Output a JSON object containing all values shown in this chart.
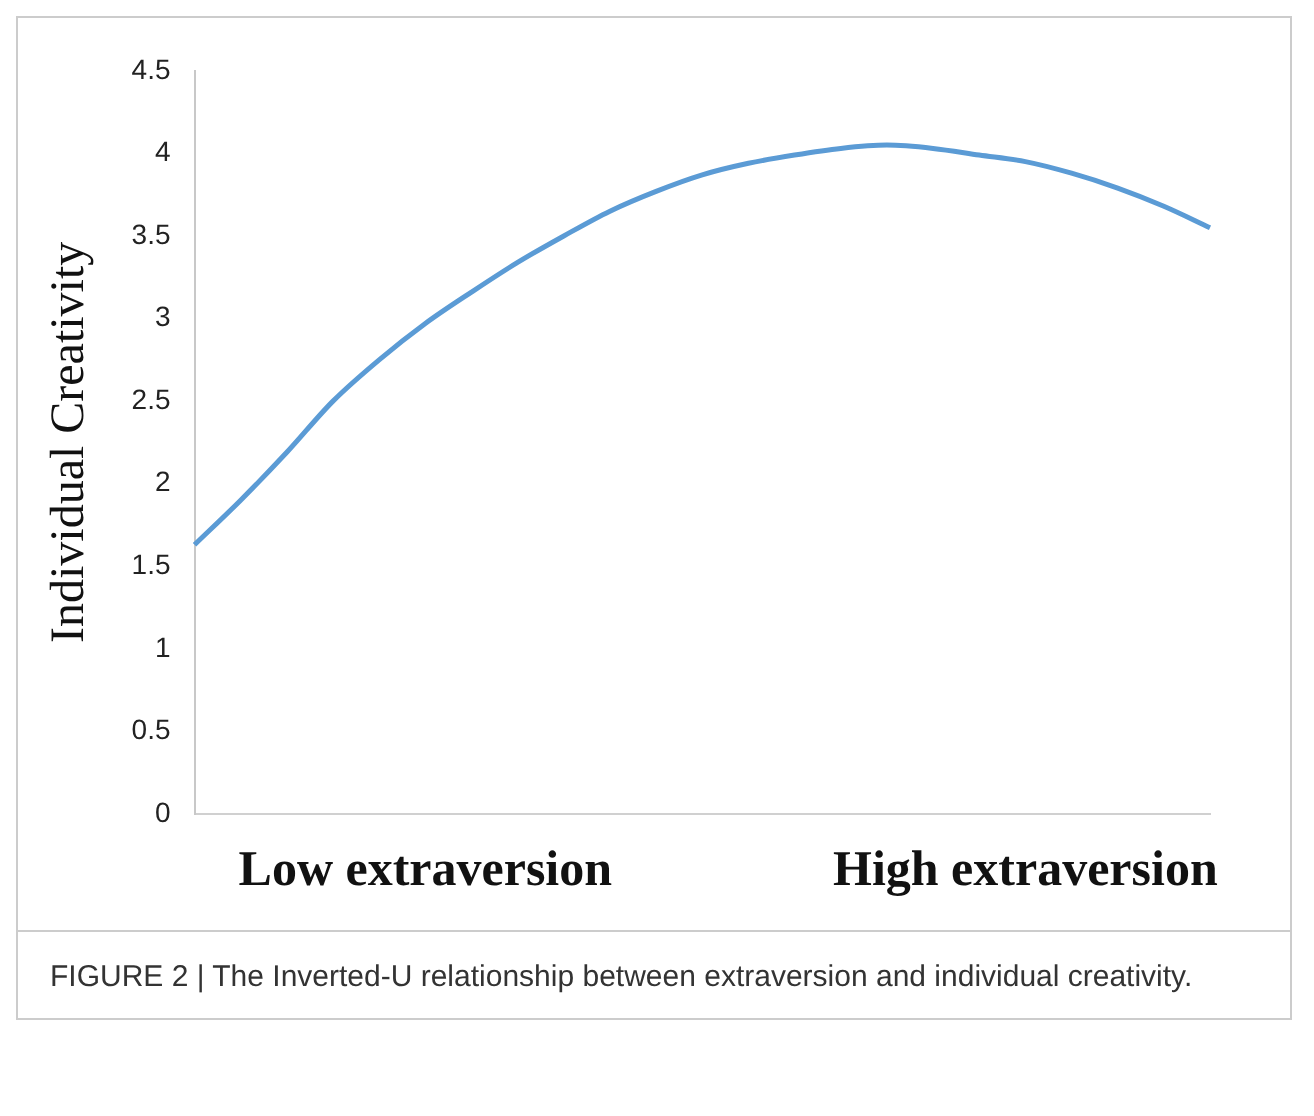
{
  "chart_data": {
    "type": "line",
    "ylabel": "Individual Creativity",
    "annotations": [
      "FIGURE 2 | The Inverted-U relationship between extraversion and individual creativity."
    ],
    "categories": [
      null,
      null,
      null,
      null,
      null,
      "Low extraversion",
      null,
      null,
      null,
      null,
      null,
      null,
      null,
      null,
      null,
      null,
      null,
      null,
      "High extraversion",
      null,
      null,
      null,
      null
    ],
    "series": [
      {
        "color": "#5b9bd5",
        "values": [
          1.63,
          1.9,
          2.19,
          2.5,
          2.75,
          2.97,
          3.16,
          3.34,
          3.5,
          3.65,
          3.77,
          3.87,
          3.94,
          3.99,
          4.03,
          4.05,
          4.03,
          3.99,
          3.95,
          3.88,
          3.79,
          3.68,
          3.55
        ]
      }
    ],
    "ylim": [
      0,
      4.5
    ],
    "yticks": [
      0,
      0.5,
      1,
      1.5,
      2,
      2.5,
      3,
      3.5,
      4,
      4.5
    ],
    "grid": false,
    "legend": false,
    "marker": "none",
    "line_style": "solid"
  }
}
